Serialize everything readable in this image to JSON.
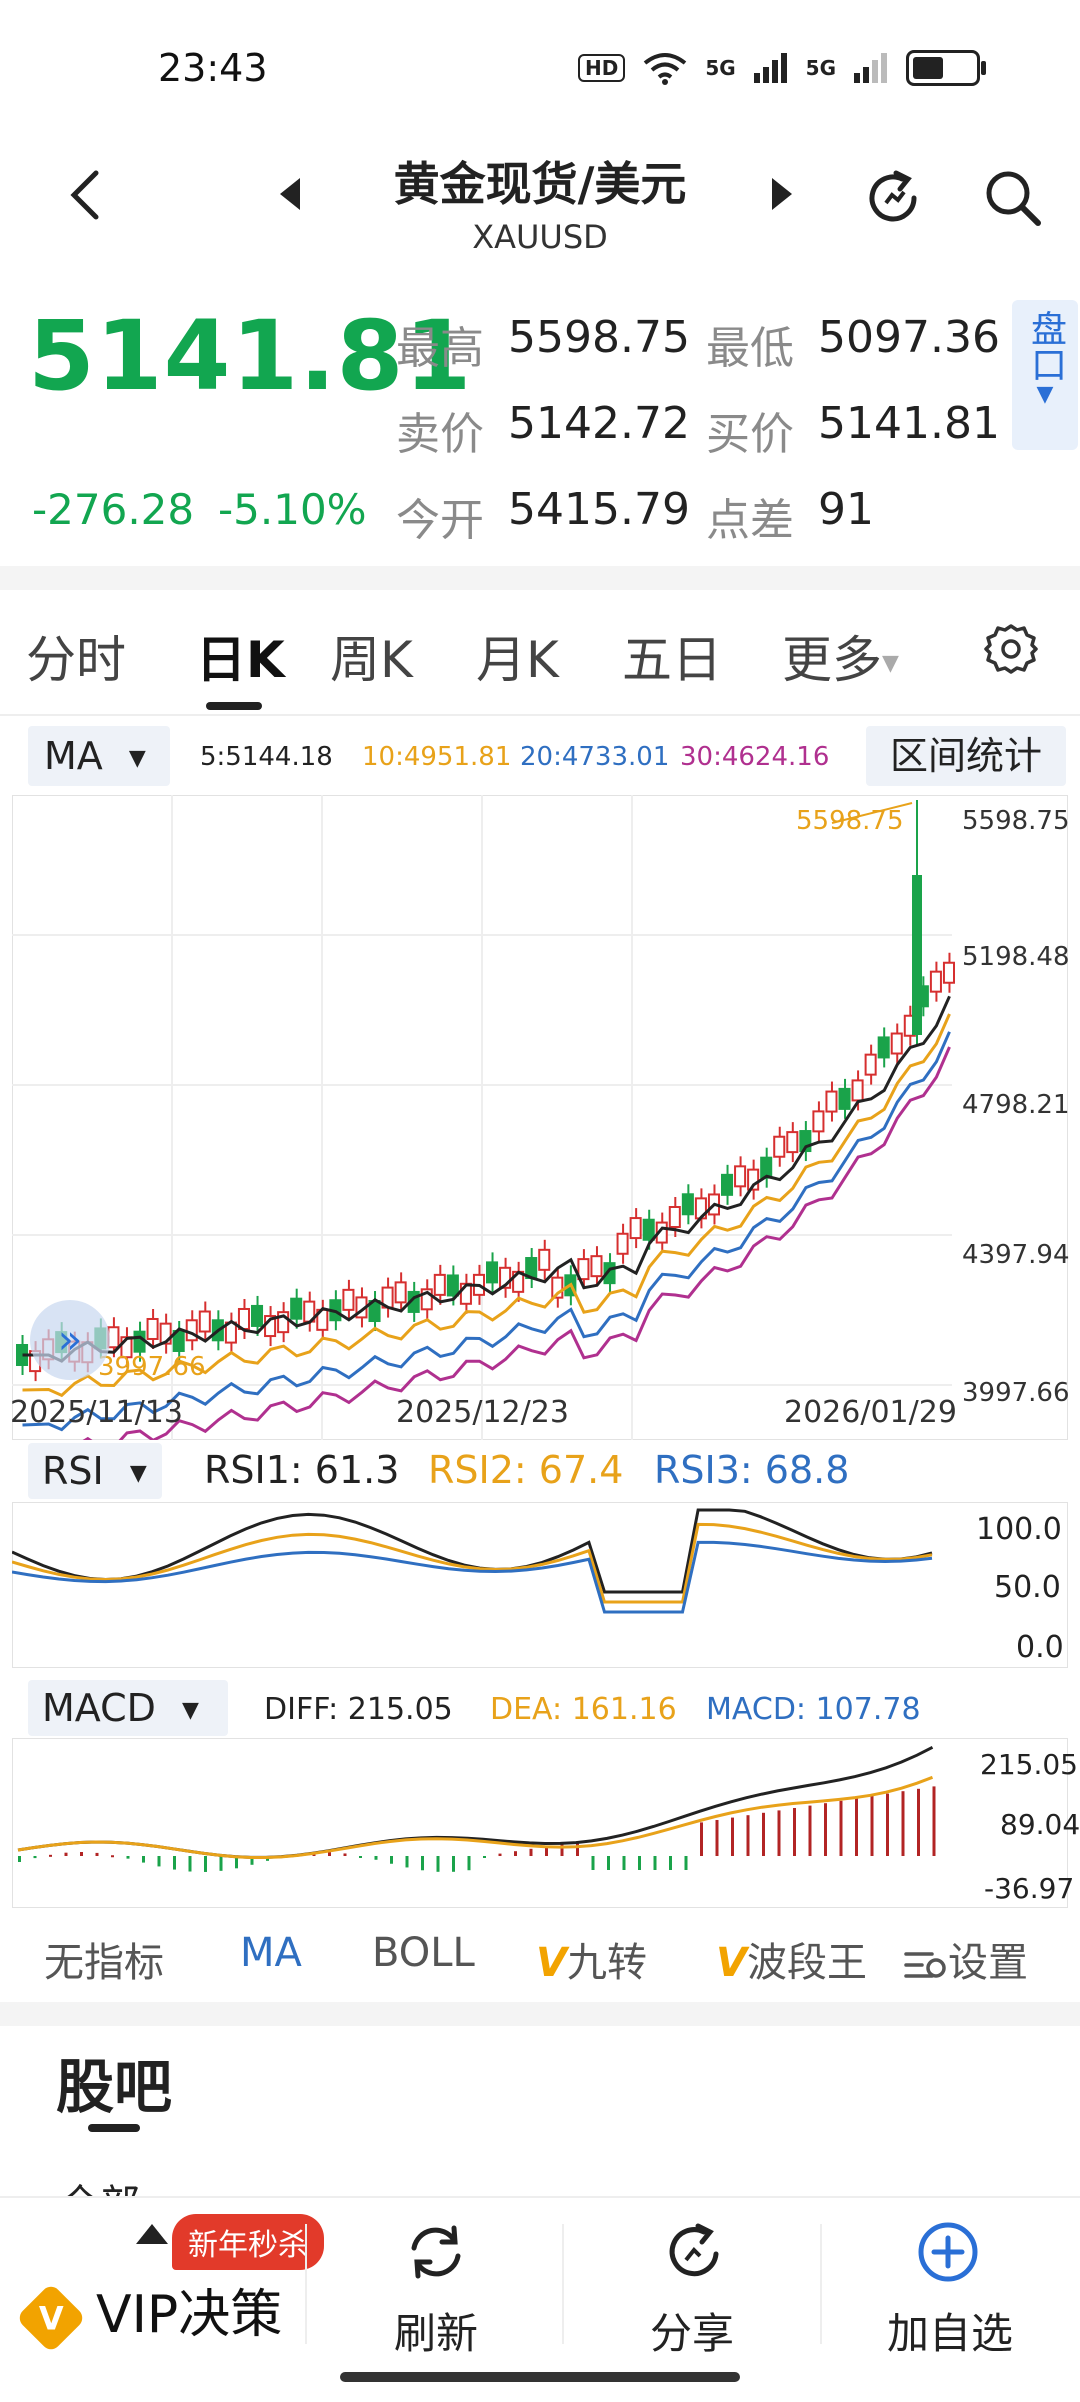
{
  "status_bar": {
    "time": "23:43",
    "hd": "HD",
    "net1": "5G",
    "net2": "5G"
  },
  "header": {
    "title": "黄金现货/美元",
    "symbol": "XAUUSD"
  },
  "quote": {
    "price": "5141.81",
    "change": "-276.28",
    "change_pct": "-5.10%",
    "high_label": "最高",
    "high": "5598.75",
    "low_label": "最低",
    "low": "5097.36",
    "ask_label": "卖价",
    "ask": "5142.72",
    "bid_label": "买价",
    "bid": "5141.81",
    "open_label": "今开",
    "open": "5415.79",
    "spread_label": "点差",
    "spread": "91",
    "panko_label": "盘口"
  },
  "tabs": [
    {
      "label": "分时"
    },
    {
      "label": "日K"
    },
    {
      "label": "周K"
    },
    {
      "label": "月K"
    },
    {
      "label": "五日"
    },
    {
      "label": "更多"
    }
  ],
  "ma_bar": {
    "select": "MA",
    "ma5": "5:5144.18",
    "ma10": "10:4951.81",
    "ma20": "20:4733.01",
    "ma30": "30:4624.16",
    "range_stats": "区间统计"
  },
  "kline": {
    "y_labels": [
      "5598.75",
      "5198.48",
      "4798.21",
      "4397.94",
      "3997.66"
    ],
    "x_labels": [
      "2025/11/13",
      "2025/12/23",
      "2026/01/29"
    ],
    "high_marker": "5598.75",
    "low_marker": "3997.66",
    "colors": {
      "up": "#d62f2f",
      "down": "#1aa34a",
      "ma5": "#222222",
      "ma10": "#e8a21a",
      "ma20": "#2f6fc1",
      "ma30": "#b0308f"
    }
  },
  "rsi": {
    "select": "RSI",
    "rsi1": "RSI1: 61.3",
    "rsi2": "RSI2: 67.4",
    "rsi3": "RSI3: 68.8",
    "y_labels": [
      "100.0",
      "50.0",
      "0.0"
    ]
  },
  "macd": {
    "select": "MACD",
    "diff": "DIFF: 215.05",
    "dea": "DEA: 161.16",
    "macd": "MACD: 107.78",
    "y_labels": [
      "215.05",
      "89.04",
      "-36.97"
    ]
  },
  "indicator_bar": {
    "none": "无指标",
    "ma": "MA",
    "boll": "BOLL",
    "jiuzhuan": "九转",
    "boduanwang": "波段王",
    "settings": "设置"
  },
  "guba": {
    "title": "股吧",
    "partial": "全部"
  },
  "bottom_nav": {
    "promo": "新年秒杀",
    "vip": "VIP决策",
    "refresh": "刷新",
    "share": "分享",
    "add": "加自选"
  }
}
